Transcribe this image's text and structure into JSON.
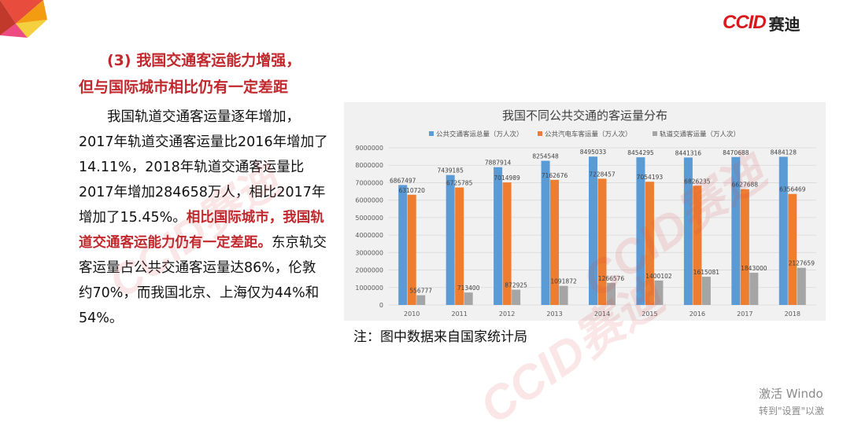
{
  "logo": {
    "en": "CCID",
    "cn": "赛迪"
  },
  "heading": {
    "line1": "(3) 我国交通客运能力增强，",
    "line2": "但与国际城市相比仍有一定差距"
  },
  "body": {
    "p1": "我国轨道交通客运量逐年增加，2017年轨道交通客运量比2016年增加了14.11%，2018年轨道交通客运量比2017年增加284658万人，相比2017年增加了15.45%。",
    "red": "相比国际城市，我国轨道交通客运能力仍有一定差距。",
    "p2": "东京轨交客运量占公共交通客运量达86%，伦敦约70%，而我国北京、上海仅为44%和54%。"
  },
  "note": "注：图中数据来自国家统计局",
  "watermark": "CCID赛迪",
  "activate": {
    "line1": "激活 Windo",
    "line2": "转到\"设置\"以激"
  },
  "colors": {
    "total": "#5b9bd5",
    "bus": "#ed7d31",
    "rail": "#a5a5a5",
    "accent": "#c0282d"
  },
  "chart_data": {
    "type": "bar",
    "title": "我国不同公共交通的客运量分布",
    "categories": [
      "2010",
      "2011",
      "2012",
      "2013",
      "2014",
      "2015",
      "2016",
      "2017",
      "2018"
    ],
    "series": [
      {
        "name": "公共交通客运总量（万人次）",
        "color": "#5b9bd5",
        "values": [
          6867497,
          7439185,
          7887914,
          8254548,
          8495033,
          8454295,
          8441316,
          8470688,
          8484128
        ]
      },
      {
        "name": "公共汽电车客运量（万人次）",
        "color": "#ed7d31",
        "values": [
          6310720,
          6725785,
          7014989,
          7162676,
          7228457,
          7054193,
          6826235,
          6627688,
          6356469
        ]
      },
      {
        "name": "轨道交通客运量（万人次）",
        "color": "#a5a5a5",
        "values": [
          556777,
          713400,
          872925,
          1091872,
          1266576,
          1400102,
          1615081,
          1843000,
          2127659
        ]
      }
    ],
    "yticks": [
      "0",
      "1000000",
      "2000000",
      "3000000",
      "4000000",
      "5000000",
      "6000000",
      "7000000",
      "8000000",
      "9000000"
    ],
    "ylim": [
      0,
      9000000
    ],
    "xlabel": "",
    "ylabel": "",
    "legend_position": "top",
    "grid": true
  }
}
